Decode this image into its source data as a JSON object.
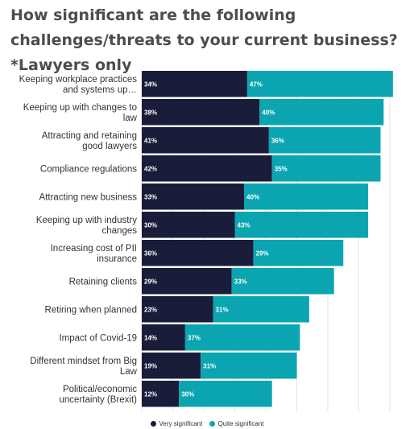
{
  "chart_data": {
    "type": "bar",
    "orientation": "horizontal",
    "stacked": true,
    "title": "How significant are the following challenges/threats to your current business? *Lawyers only",
    "categories": [
      "Keeping workplace practices and systems up…",
      "Keeping up with changes to law",
      "Attracting and retaining good lawyers",
      "Compliance regulations",
      "Attracting new business",
      "Keeping up with industry changes",
      "Increasing cost of PII insurance",
      "Retaining clients",
      "Retiring when planned",
      "Impact of Covid-19",
      "Different mindset from Big Law",
      "Political/economic uncertainty (Brexit)"
    ],
    "series": [
      {
        "name": "Very significant",
        "color": "#1a1d39",
        "values": [
          34,
          38,
          41,
          42,
          33,
          30,
          36,
          29,
          23,
          14,
          19,
          12
        ],
        "labels": [
          "34%",
          "38%",
          "41%",
          "42%",
          "33%",
          "30%",
          "36%",
          "29%",
          "23%",
          "14%",
          "19%",
          "12%"
        ]
      },
      {
        "name": "Quite significant",
        "color": "#0aa5b0",
        "values": [
          47,
          40,
          36,
          35,
          40,
          43,
          29,
          33,
          31,
          37,
          31,
          30
        ],
        "labels": [
          "47%",
          "40%",
          "36%",
          "35%",
          "40%",
          "43%",
          "29%",
          "33%",
          "31%",
          "37%",
          "31%",
          "30%"
        ]
      }
    ],
    "xlim": [
      0,
      85
    ],
    "grid": true,
    "legend_position": "bottom"
  }
}
